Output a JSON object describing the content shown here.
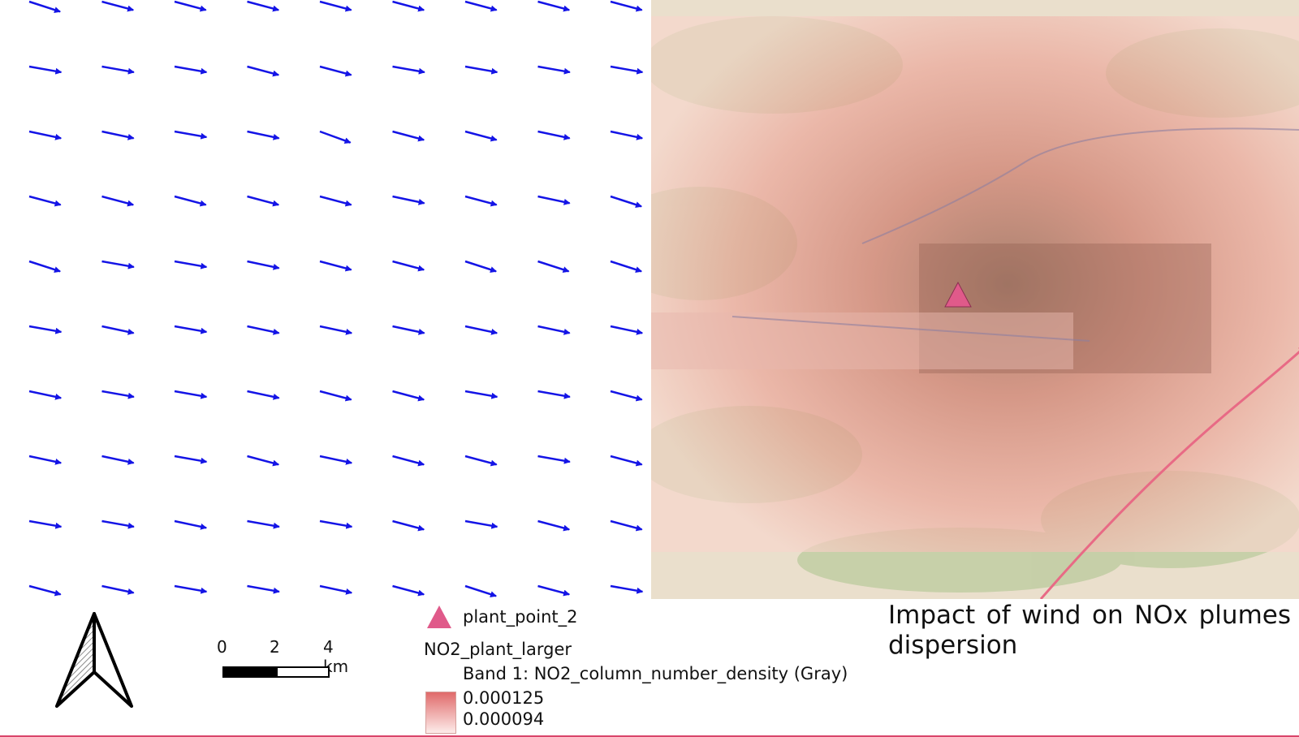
{
  "layout": {
    "title": "Impact of wind on NOx plumes dispersion"
  },
  "legend": {
    "point_layer_label": "plant_point_2",
    "point_symbol_color": "#e05a8a",
    "raster_layer_label": "NO2_plant_larger",
    "band_label": "Band 1: NO2_column_number_density (Gray)",
    "ramp_max": "0.000125",
    "ramp_min": "0.000094",
    "ramp_color_high": "#e06a6a",
    "ramp_color_low": "#fdecea"
  },
  "scale_bar": {
    "labels": [
      "0",
      "2",
      "4 km"
    ],
    "unit": "km"
  },
  "north_arrow": {
    "icon": "north-arrow-icon"
  },
  "wind_field": {
    "arrow_color": "#1414e6",
    "rows": 10,
    "cols": 9,
    "direction_deg": [
      [
        18,
        15,
        15,
        15,
        15,
        15,
        15,
        15,
        15
      ],
      [
        10,
        10,
        10,
        15,
        15,
        10,
        10,
        10,
        10
      ],
      [
        12,
        12,
        10,
        12,
        20,
        15,
        15,
        12,
        12
      ],
      [
        15,
        15,
        15,
        15,
        15,
        12,
        15,
        12,
        18
      ],
      [
        18,
        10,
        10,
        12,
        15,
        15,
        18,
        18,
        18
      ],
      [
        10,
        12,
        10,
        12,
        12,
        12,
        12,
        12,
        12
      ],
      [
        12,
        10,
        10,
        12,
        15,
        15,
        10,
        10,
        15
      ],
      [
        12,
        12,
        10,
        15,
        12,
        15,
        15,
        10,
        15
      ],
      [
        10,
        10,
        12,
        10,
        10,
        15,
        10,
        15,
        15
      ],
      [
        15,
        12,
        10,
        10,
        12,
        15,
        18,
        15,
        10
      ]
    ]
  },
  "map": {
    "plant_marker_icon": "triangle-icon",
    "plume_colors": [
      "#f7c9bf",
      "#eea59a",
      "#d88878",
      "#a86a58"
    ]
  }
}
